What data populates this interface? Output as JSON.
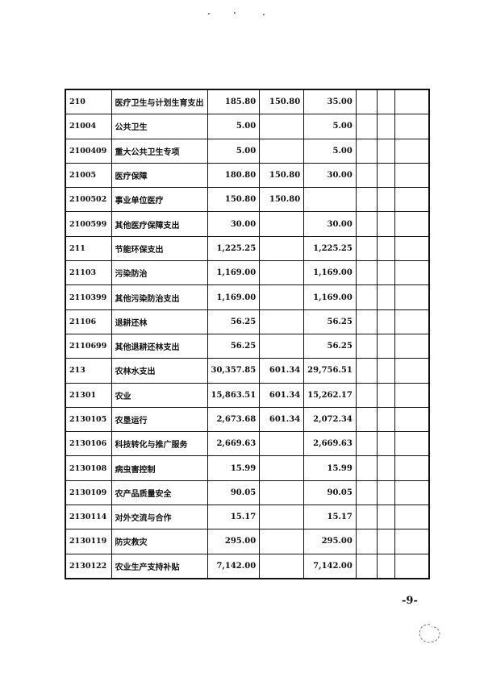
{
  "page_number": "-9-",
  "table": {
    "rows": [
      {
        "code": "210",
        "name": "医疗卫生与计划生育支出",
        "total": "185.80",
        "basic": "150.80",
        "project": "35.00"
      },
      {
        "code": "21004",
        "name": "公共卫生",
        "total": "5.00",
        "basic": "",
        "project": "5.00"
      },
      {
        "code": "2100409",
        "name": "重大公共卫生专项",
        "total": "5.00",
        "basic": "",
        "project": "5.00"
      },
      {
        "code": "21005",
        "name": "医疗保障",
        "total": "180.80",
        "basic": "150.80",
        "project": "30.00"
      },
      {
        "code": "2100502",
        "name": "事业单位医疗",
        "total": "150.80",
        "basic": "150.80",
        "project": ""
      },
      {
        "code": "2100599",
        "name": "其他医疗保障支出",
        "total": "30.00",
        "basic": "",
        "project": "30.00"
      },
      {
        "code": "211",
        "name": "节能环保支出",
        "total": "1,225.25",
        "basic": "",
        "project": "1,225.25"
      },
      {
        "code": "21103",
        "name": "污染防治",
        "total": "1,169.00",
        "basic": "",
        "project": "1,169.00"
      },
      {
        "code": "2110399",
        "name": "其他污染防治支出",
        "total": "1,169.00",
        "basic": "",
        "project": "1,169.00"
      },
      {
        "code": "21106",
        "name": "退耕还林",
        "total": "56.25",
        "basic": "",
        "project": "56.25"
      },
      {
        "code": "2110699",
        "name": "其他退耕还林支出",
        "total": "56.25",
        "basic": "",
        "project": "56.25"
      },
      {
        "code": "213",
        "name": "农林水支出",
        "total": "30,357.85",
        "basic": "601.34",
        "project": "29,756.51"
      },
      {
        "code": "21301",
        "name": "农业",
        "total": "15,863.51",
        "basic": "601.34",
        "project": "15,262.17"
      },
      {
        "code": "2130105",
        "name": "农垦运行",
        "total": "2,673.68",
        "basic": "601.34",
        "project": "2,072.34"
      },
      {
        "code": "2130106",
        "name": "科技转化与推广服务",
        "total": "2,669.63",
        "basic": "",
        "project": "2,669.63"
      },
      {
        "code": "2130108",
        "name": "病虫害控制",
        "total": "15.99",
        "basic": "",
        "project": "15.99"
      },
      {
        "code": "2130109",
        "name": "农产品质量安全",
        "total": "90.05",
        "basic": "",
        "project": "90.05"
      },
      {
        "code": "2130114",
        "name": "对外交流与合作",
        "total": "15.17",
        "basic": "",
        "project": "15.17"
      },
      {
        "code": "2130119",
        "name": "防灾救灾",
        "total": "295.00",
        "basic": "",
        "project": "295.00"
      },
      {
        "code": "2130122",
        "name": "农业生产支持补贴",
        "total": "7,142.00",
        "basic": "",
        "project": "7,142.00"
      }
    ]
  }
}
